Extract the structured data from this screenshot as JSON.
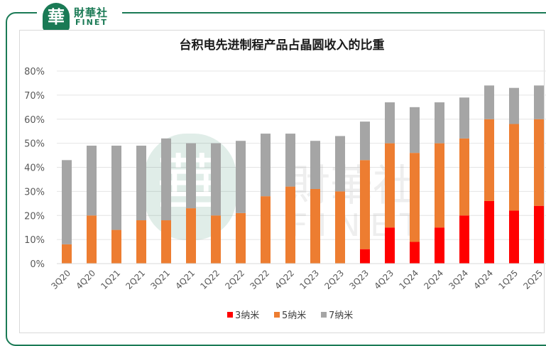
{
  "logo": {
    "badge": "華",
    "name_cn": "財華社",
    "name_en": "FINET"
  },
  "watermark": {
    "badge": "華",
    "name_cn": "財華社",
    "name_en": "FINET"
  },
  "chart_data": {
    "type": "bar",
    "stacked": true,
    "title": "台积电先进制程产品占晶圆收入的比重",
    "categories": [
      "3Q20",
      "4Q20",
      "1Q21",
      "2Q21",
      "3Q21",
      "4Q21",
      "1Q22",
      "2Q22",
      "3Q22",
      "4Q22",
      "1Q23",
      "2Q23",
      "3Q23",
      "4Q23",
      "1Q24",
      "2Q24",
      "3Q24",
      "4Q24",
      "1Q25",
      "2Q25"
    ],
    "series": [
      {
        "name": "3纳米",
        "color": "#ff0000",
        "values": [
          0,
          0,
          0,
          0,
          0,
          0,
          0,
          0,
          0,
          0,
          0,
          0,
          6,
          15,
          9,
          15,
          20,
          26,
          22,
          24
        ]
      },
      {
        "name": "5纳米",
        "color": "#ed7d31",
        "values": [
          8,
          20,
          14,
          18,
          18,
          23,
          20,
          21,
          28,
          32,
          31,
          30,
          37,
          35,
          37,
          35,
          32,
          34,
          36,
          36
        ]
      },
      {
        "name": "7纳米",
        "color": "#a5a5a5",
        "values": [
          35,
          29,
          35,
          31,
          34,
          27,
          30,
          30,
          26,
          22,
          20,
          23,
          16,
          17,
          19,
          17,
          17,
          14,
          15,
          14
        ]
      }
    ],
    "yticks": [
      "0%",
      "10%",
      "20%",
      "30%",
      "40%",
      "50%",
      "60%",
      "70%",
      "80%"
    ],
    "ylim": [
      0,
      80
    ],
    "grid": true,
    "legend_position": "bottom"
  }
}
